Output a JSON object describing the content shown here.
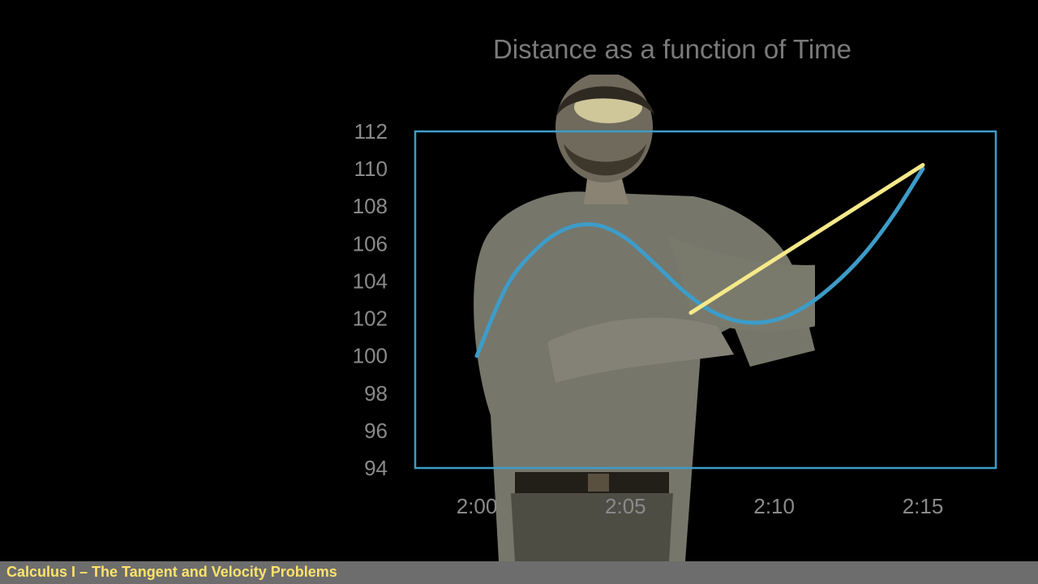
{
  "chart_data": {
    "type": "line",
    "title": "Distance as a function of Time",
    "xlabel": "",
    "ylabel": "",
    "x_ticks": [
      "2:00",
      "2:05",
      "2:10",
      "2:15"
    ],
    "y_ticks": [
      94,
      96,
      98,
      100,
      102,
      104,
      106,
      108,
      110,
      112
    ],
    "xlim": [
      0,
      16.5
    ],
    "ylim": [
      94,
      112
    ],
    "grid": false,
    "legend": "none",
    "series": [
      {
        "color": "#3d9cc8",
        "x": [
          0,
          1,
          2,
          3,
          4,
          5,
          6,
          7,
          8,
          9,
          10,
          11,
          12,
          13,
          14,
          15
        ],
        "values": [
          100,
          103.7,
          105.7,
          106.8,
          107,
          106.3,
          104.9,
          103.4,
          102.3,
          101.8,
          101.9,
          102.6,
          103.8,
          105.4,
          107.5,
          110
        ]
      },
      {
        "color": "#f5e98a",
        "x": [
          7.2,
          15
        ],
        "values": [
          102.3,
          110.2
        ]
      }
    ],
    "frame_color": "#3d9cc8"
  },
  "footer": {
    "caption": "Calculus I – The Tangent and Velocity Problems"
  }
}
